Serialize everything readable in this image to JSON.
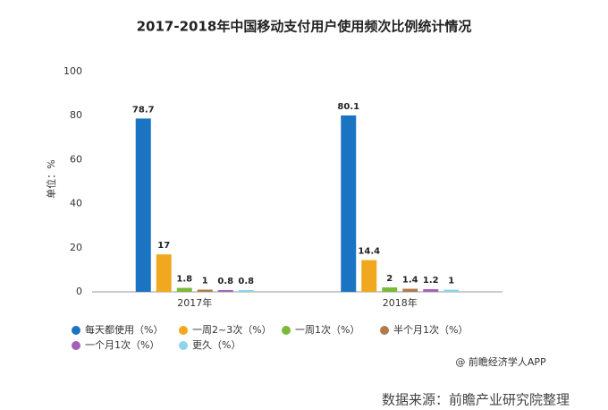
{
  "chart_data": {
    "type": "bar",
    "title": "2017-2018年中国移动支付用户使用频次比例统计情况",
    "y_label": "单位：%",
    "categories": [
      "2017年",
      "2018年"
    ],
    "series": [
      {
        "name": "每天都使用（%）",
        "color": "#1b74c1",
        "values": [
          78.7,
          80.1
        ]
      },
      {
        "name": "一周2~3次（%）",
        "color": "#f0a81e",
        "values": [
          17,
          14.4
        ]
      },
      {
        "name": "一周1次（%）",
        "color": "#7cb83a",
        "values": [
          1.8,
          2
        ]
      },
      {
        "name": "半个月1次（%）",
        "color": "#b07a4a",
        "values": [
          1,
          1.4
        ]
      },
      {
        "name": "一个月1次（%）",
        "color": "#a45fb8",
        "values": [
          0.8,
          1.2
        ]
      },
      {
        "name": "更久（%）",
        "color": "#8fd3ee",
        "values": [
          0.8,
          1
        ]
      }
    ],
    "ylim": [
      0,
      100
    ],
    "yticks": [
      0,
      20,
      40,
      60,
      80,
      100
    ],
    "grid": false,
    "annotations": [
      "@ 前瞻经济学人APP"
    ],
    "source": "数据来源：前瞻产业研究院整理"
  }
}
